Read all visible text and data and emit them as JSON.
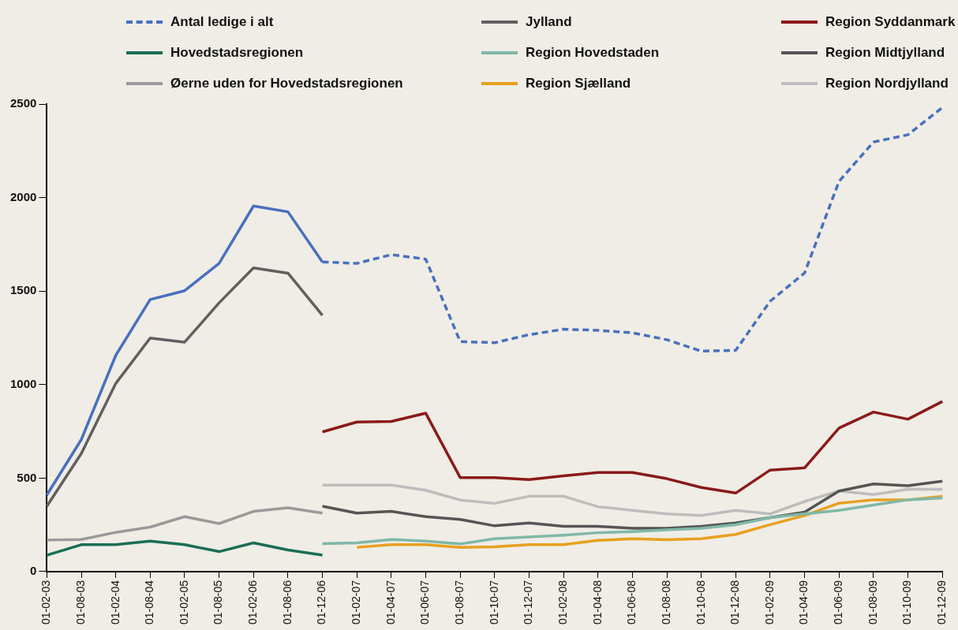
{
  "chart_data": {
    "type": "line",
    "categories": [
      "01-02-03",
      "01-08-03",
      "01-02-04",
      "01-08-04",
      "01-02-05",
      "01-08-05",
      "01-02-06",
      "01-08-06",
      "01-12-06",
      "01-02-07",
      "01-04-07",
      "01-06-07",
      "01-08-07",
      "01-10-07",
      "01-12-07",
      "01-02-08",
      "01-04-08",
      "01-06-08",
      "01-08-08",
      "01-10-08",
      "01-12-08",
      "01-02-09",
      "01-04-09",
      "01-06-09",
      "01-08-09",
      "01-10-09",
      "01-12-09"
    ],
    "ylim": [
      0,
      2500
    ],
    "yticks": [
      0,
      500,
      1000,
      1500,
      2000,
      2500
    ],
    "grid": false,
    "legend": "top",
    "marker": "none",
    "series": [
      {
        "name": "Antal ledige i alt",
        "color": "#4a6fc0",
        "line_style": "dashed",
        "values": [
          null,
          null,
          null,
          null,
          null,
          null,
          null,
          null,
          1656,
          1648,
          1695,
          1671,
          1230,
          1224,
          1267,
          1296,
          1290,
          1277,
          1240,
          1179,
          1183,
          1446,
          1597,
          2087,
          2297,
          2336,
          2482
        ]
      },
      {
        "name": "Jylland",
        "color": "#606060",
        "values": [
          350,
          631,
          1006,
          1249,
          1227,
          1437,
          1624,
          1596,
          1371,
          null,
          null,
          null,
          null,
          null,
          null,
          null,
          null,
          null,
          null,
          null,
          null,
          null,
          null,
          null,
          null,
          null,
          null
        ]
      },
      {
        "name": "Region Syddanmark",
        "color": "#8b1a1a",
        "values": [
          null,
          null,
          null,
          null,
          null,
          null,
          null,
          null,
          747,
          800,
          803,
          847,
          503,
          503,
          492,
          512,
          530,
          530,
          497,
          450,
          420,
          543,
          555,
          768,
          853,
          815,
          910
        ]
      },
      {
        "name": "Hovedstadsregionen",
        "color": "#1a6e55",
        "values": [
          88,
          144,
          144,
          163,
          144,
          107,
          154,
          116,
          88,
          null,
          null,
          null,
          null,
          null,
          null,
          null,
          null,
          null,
          null,
          null,
          null,
          null,
          null,
          null,
          null,
          null,
          null
        ]
      },
      {
        "name": "Region Hovedstaden",
        "color": "#7fb8a8",
        "values": [
          null,
          null,
          null,
          null,
          null,
          null,
          null,
          null,
          150,
          154,
          172,
          163,
          148,
          176,
          185,
          195,
          208,
          214,
          223,
          232,
          251,
          289,
          309,
          328,
          356,
          384,
          394
        ]
      },
      {
        "name": "Region Midtjylland",
        "color": "#555555",
        "values": [
          null,
          null,
          null,
          null,
          null,
          null,
          null,
          null,
          350,
          313,
          322,
          294,
          279,
          245,
          260,
          242,
          242,
          232,
          232,
          242,
          260,
          289,
          318,
          431,
          469,
          459,
          484
        ]
      },
      {
        "name": "Øerne uden for Hovedstadsregionen",
        "color": "#9a9a9a",
        "values": [
          169,
          172,
          210,
          238,
          294,
          257,
          322,
          341,
          313,
          null,
          null,
          null,
          null,
          null,
          null,
          null,
          null,
          null,
          null,
          null,
          null,
          null,
          null,
          null,
          null,
          null,
          null
        ]
      },
      {
        "name": "Region Sjælland",
        "color": "#e8a020",
        "values": [
          null,
          null,
          null,
          null,
          null,
          null,
          null,
          null,
          null,
          130,
          144,
          144,
          129,
          133,
          144,
          144,
          167,
          176,
          171,
          176,
          199,
          251,
          300,
          366,
          384,
          384,
          403
        ]
      },
      {
        "name": "Region Nordjylland",
        "color": "#bdbdbd",
        "values": [
          null,
          null,
          null,
          null,
          null,
          null,
          null,
          null,
          463,
          463,
          463,
          435,
          383,
          365,
          403,
          403,
          347,
          328,
          309,
          300,
          328,
          309,
          375,
          431,
          412,
          440,
          440
        ]
      },
      {
        "color": "#4a6fc0",
        "line_style": "solid",
        "values": [
          410,
          706,
          1156,
          1455,
          1502,
          1648,
          1955,
          1924,
          1656,
          null,
          null,
          null,
          null,
          null,
          null,
          null,
          null,
          null,
          null,
          null,
          null,
          null,
          null,
          null,
          null,
          null,
          null
        ]
      }
    ]
  }
}
